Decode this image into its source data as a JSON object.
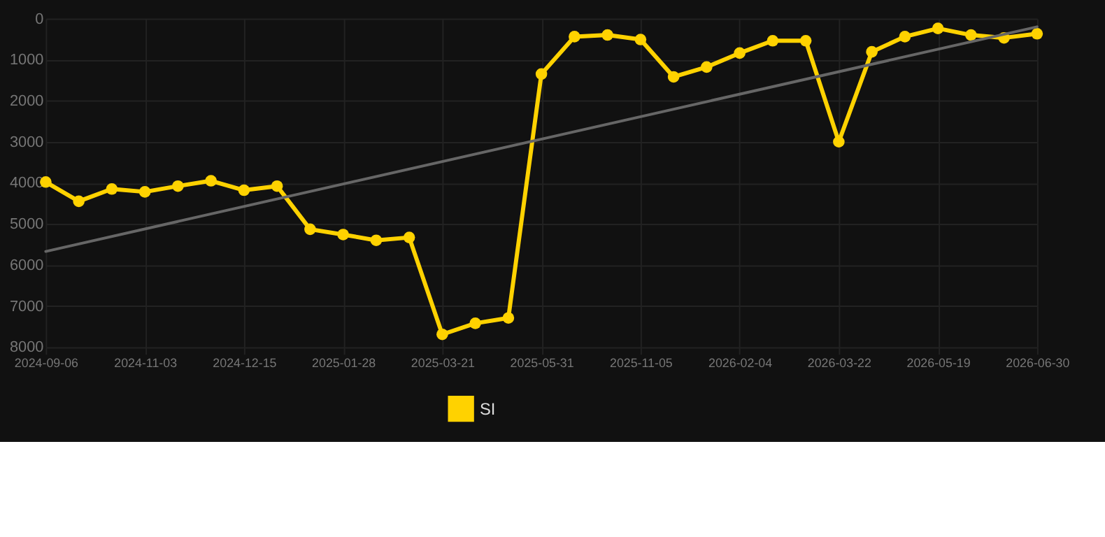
{
  "chart_data": {
    "type": "line",
    "categories": [
      "2024-09-06",
      null,
      null,
      "2024-11-03",
      null,
      null,
      "2024-12-15",
      null,
      null,
      "2025-01-28",
      null,
      null,
      "2025-03-21",
      null,
      null,
      "2025-05-31",
      null,
      null,
      "2025-11-05",
      null,
      null,
      "2026-02-04",
      null,
      null,
      "2026-03-22",
      null,
      null,
      "2026-05-19",
      null,
      null,
      "2026-06-30"
    ],
    "series": [
      {
        "name": "SI",
        "color": "#ffd200",
        "marker": "circle",
        "values": [
          3980,
          4450,
          4150,
          4220,
          4080,
          3950,
          4180,
          4080,
          5130,
          5260,
          5400,
          5330,
          7690,
          7420,
          7290,
          1350,
          440,
          400,
          510,
          1420,
          1180,
          840,
          540,
          540,
          3000,
          810,
          440,
          240,
          400,
          470,
          370
        ]
      },
      {
        "type": "line",
        "color": "#666666",
        "marker": "none",
        "values": [
          5670,
          null,
          null,
          null,
          null,
          null,
          null,
          null,
          null,
          null,
          null,
          null,
          null,
          null,
          null,
          null,
          null,
          null,
          null,
          null,
          null,
          null,
          null,
          null,
          null,
          null,
          null,
          null,
          null,
          null,
          200
        ]
      }
    ],
    "ylim": [
      8000,
      0
    ],
    "yticks": [
      0,
      1000,
      2000,
      3000,
      4000,
      5000,
      6000,
      7000,
      8000
    ],
    "grid": true,
    "legend": "bottom"
  }
}
